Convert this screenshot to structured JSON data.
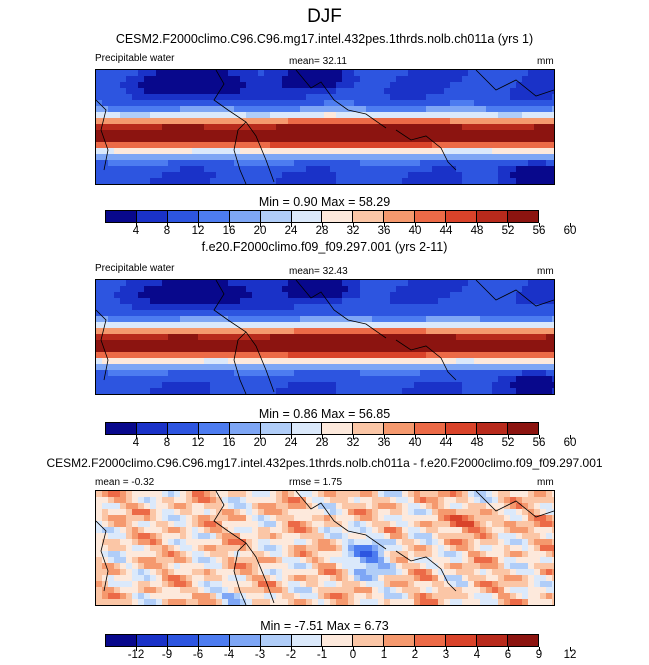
{
  "title": "DJF",
  "colors": {
    "full": [
      "#08088c",
      "#1a32c8",
      "#2d55e0",
      "#4d7cf0",
      "#7ea6f5",
      "#b0cdf8",
      "#dbe9fb",
      "#fde9dc",
      "#fbc6a6",
      "#f5996e",
      "#ec6a47",
      "#d9432a",
      "#b82a1c",
      "#8c1410"
    ],
    "diff": [
      "#08088c",
      "#1a32c8",
      "#2d55e0",
      "#4d7cf0",
      "#7ea6f5",
      "#b0cdf8",
      "#dbe9fb",
      "#fde9dc",
      "#fbc6a6",
      "#f5996e",
      "#ec6a47",
      "#d9432a",
      "#b82a1c",
      "#8c1410"
    ]
  },
  "chart_data": [
    {
      "type": "heatmap",
      "title": "CESM2.F2000climo.C96.C96.mg17.intel.432pes.1thrds.nolb.ch011a (yrs 1)",
      "field_label": "Precipitable water",
      "mean_text": "mean=  32.11",
      "units": "mm",
      "minmax_text": "Min =   0.90 Max =  58.29",
      "min": 0.9,
      "max": 58.29,
      "mean": 32.11,
      "colorbar_ticks": [
        "4",
        "8",
        "12",
        "16",
        "20",
        "24",
        "28",
        "32",
        "36",
        "40",
        "44",
        "48",
        "52",
        "56",
        "60"
      ]
    },
    {
      "type": "heatmap",
      "title": "f.e20.F2000climo.f09_f09.297.001 (yrs 2-11)",
      "field_label": "Precipitable water",
      "mean_text": "mean=  32.43",
      "units": "mm",
      "minmax_text": "Min =   0.86 Max =  56.85",
      "min": 0.86,
      "max": 56.85,
      "mean": 32.43,
      "colorbar_ticks": [
        "4",
        "8",
        "12",
        "16",
        "20",
        "24",
        "28",
        "32",
        "36",
        "40",
        "44",
        "48",
        "52",
        "56",
        "60"
      ]
    },
    {
      "type": "heatmap",
      "title": "CESM2.F2000climo.C96.C96.mg17.intel.432pes.1thrds.nolb.ch011a - f.e20.F2000climo.f09_f09.297.001",
      "mean_text": "mean = -0.32",
      "rmse_text": "rmse =   1.75",
      "units": "mm",
      "minmax_text": "Min =  -7.51 Max =   6.73",
      "min": -7.51,
      "max": 6.73,
      "mean": -0.32,
      "rmse": 1.75,
      "colorbar_ticks": [
        "-12",
        "-9",
        "-6",
        "-4",
        "-3",
        "-2",
        "-1",
        "0",
        "1",
        "2",
        "3",
        "4",
        "6",
        "9",
        "12"
      ]
    }
  ]
}
